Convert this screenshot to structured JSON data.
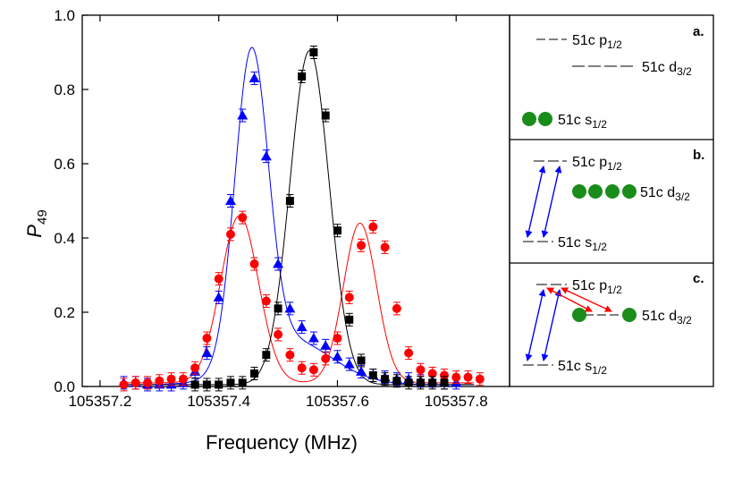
{
  "chart_data": {
    "type": "scatter",
    "xlabel": "Frequency (MHz)",
    "ylabel": "P",
    "ylabel_sub": "49",
    "xlim": [
      105357.17,
      105357.89
    ],
    "ylim": [
      0,
      1.0
    ],
    "xticks": [
      105357.2,
      105357.4,
      105357.6,
      105357.8
    ],
    "xtick_labels": [
      "105357.2",
      "105357.4",
      "105357.6",
      "105357.8"
    ],
    "yticks": [
      0.0,
      0.2,
      0.4,
      0.6,
      0.8,
      1.0
    ],
    "ytick_labels": [
      "0.0",
      "0.2",
      "0.4",
      "0.6",
      "0.8",
      "1.0"
    ],
    "grid": false,
    "series": [
      {
        "marker": "triangle",
        "color": "#0000ff",
        "x": [
          105357.24,
          105357.26,
          105357.28,
          105357.3,
          105357.32,
          105357.34,
          105357.36,
          105357.38,
          105357.4,
          105357.42,
          105357.44,
          105357.46,
          105357.48,
          105357.5,
          105357.52,
          105357.54,
          105357.56,
          105357.58,
          105357.6,
          105357.62,
          105357.64,
          105357.66,
          105357.68,
          105357.7,
          105357.72,
          105357.74,
          105357.76,
          105357.78,
          105357.8
        ],
        "y": [
          0.01,
          0.01,
          0.005,
          0.005,
          0.005,
          0.01,
          0.04,
          0.09,
          0.24,
          0.5,
          0.73,
          0.83,
          0.62,
          0.33,
          0.21,
          0.16,
          0.13,
          0.11,
          0.08,
          0.06,
          0.04,
          0.03,
          0.025,
          0.02,
          0.02,
          0.015,
          0.015,
          0.01,
          0.01
        ]
      },
      {
        "marker": "circle",
        "color": "#ff0000",
        "x": [
          105357.24,
          105357.26,
          105357.28,
          105357.3,
          105357.32,
          105357.34,
          105357.36,
          105357.38,
          105357.4,
          105357.42,
          105357.44,
          105357.46,
          105357.48,
          105357.5,
          105357.52,
          105357.54,
          105357.56,
          105357.58,
          105357.6,
          105357.62,
          105357.64,
          105357.66,
          105357.68,
          105357.7,
          105357.72,
          105357.74,
          105357.76,
          105357.78,
          105357.8,
          105357.82,
          105357.84
        ],
        "y": [
          0.005,
          0.01,
          0.01,
          0.015,
          0.02,
          0.02,
          0.05,
          0.13,
          0.29,
          0.41,
          0.455,
          0.33,
          0.23,
          0.14,
          0.085,
          0.05,
          0.045,
          0.075,
          0.13,
          0.24,
          0.38,
          0.43,
          0.375,
          0.21,
          0.09,
          0.045,
          0.035,
          0.03,
          0.025,
          0.025,
          0.02
        ]
      },
      {
        "marker": "square",
        "color": "#000000",
        "x": [
          105357.36,
          105357.38,
          105357.4,
          105357.42,
          105357.44,
          105357.46,
          105357.48,
          105357.5,
          105357.52,
          105357.54,
          105357.56,
          105357.58,
          105357.6,
          105357.62,
          105357.64,
          105357.66,
          105357.68,
          105357.7,
          105357.72,
          105357.74,
          105357.76,
          105357.78
        ],
        "y": [
          0.005,
          0.005,
          0.005,
          0.01,
          0.01,
          0.035,
          0.085,
          0.21,
          0.5,
          0.835,
          0.9,
          0.73,
          0.42,
          0.18,
          0.07,
          0.03,
          0.02,
          0.015,
          0.01,
          0.01,
          0.01,
          0.01
        ]
      }
    ],
    "fits": [
      {
        "color": "#0000ff",
        "peaks": [
          [
            105357.455,
            0.83,
            0.028
          ],
          [
            105357.52,
            0.12,
            0.07
          ]
        ],
        "baseline": 0.005
      },
      {
        "color": "#ff0000",
        "peaks": [
          [
            105357.435,
            0.45,
            0.032
          ],
          [
            105357.638,
            0.43,
            0.028
          ]
        ],
        "baseline": 0.01
      },
      {
        "color": "#000000",
        "peaks": [
          [
            105357.553,
            0.9,
            0.033
          ]
        ],
        "baseline": 0.005
      }
    ]
  },
  "panels": [
    {
      "tag": "a.",
      "p_label": "51c p",
      "p_sub": "1/2",
      "d_label": "51c d",
      "d_sub": "3/2",
      "s_label": "51c s",
      "s_sub": "1/2"
    },
    {
      "tag": "b.",
      "p_label": "51c p",
      "p_sub": "1/2",
      "d_label": "51c d",
      "d_sub": "3/2",
      "s_label": "51c s",
      "s_sub": "1/2"
    },
    {
      "tag": "c.",
      "p_label": "51c p",
      "p_sub": "1/2",
      "d_label": "51c d",
      "d_sub": "3/2",
      "s_label": "51c s",
      "s_sub": "1/2"
    }
  ],
  "colors": {
    "atom": "#1a8c1a",
    "blue": "#0000ff",
    "red": "#ff0000"
  }
}
